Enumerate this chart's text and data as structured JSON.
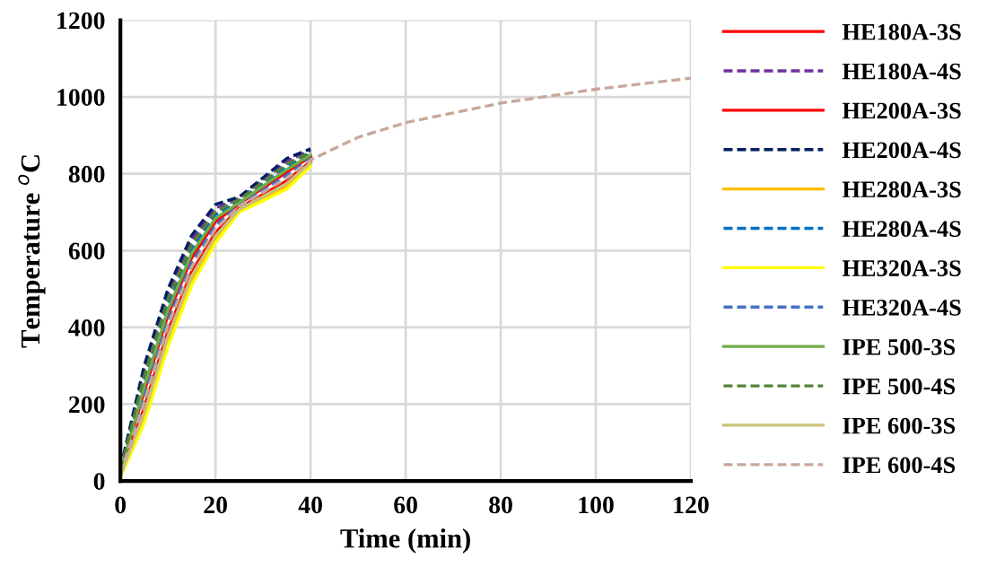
{
  "chart_data": {
    "type": "line",
    "xlabel": "Time (min)",
    "ylabel": "Temperature $^{o}$C",
    "x": [
      0,
      5,
      10,
      15,
      20,
      25,
      30,
      35,
      40,
      50,
      60,
      80,
      100,
      120
    ],
    "xlim": [
      0,
      120
    ],
    "xticks": [
      0,
      20,
      40,
      60,
      80,
      100,
      120
    ],
    "ylim": [
      0,
      1200
    ],
    "yticks": [
      0,
      200,
      400,
      600,
      800,
      1000,
      1200
    ],
    "grid": true,
    "legend": "right",
    "marker": "none",
    "series": [
      {
        "name": "HE180A-3S",
        "color": "#ff0000",
        "line_style": "solid",
        "values": [
          22,
          232,
          432,
          581,
          675,
          722,
          763,
          804,
          845,
          null,
          null,
          null,
          null,
          null
        ]
      },
      {
        "name": "HE180A-4S",
        "color": "#7030a0",
        "line_style": "dashed",
        "values": [
          30,
          286,
          486,
          628,
          711,
          736,
          785,
          833,
          861,
          null,
          null,
          null,
          null,
          null
        ]
      },
      {
        "name": "HE200A-3S",
        "color": "#ff0000",
        "line_style": "solid",
        "values": [
          16,
          191,
          391,
          545,
          647,
          711,
          746,
          782,
          832,
          null,
          null,
          null,
          null,
          null
        ]
      },
      {
        "name": "HE200A-4S",
        "color": "#002060",
        "line_style": "dashed",
        "values": [
          32,
          300,
          500,
          640,
          720,
          740,
          790,
          840,
          865,
          null,
          null,
          null,
          null,
          null
        ]
      },
      {
        "name": "HE280A-3S",
        "color": "#ffc000",
        "line_style": "solid",
        "values": [
          12,
          164,
          364,
          522,
          629,
          704,
          735,
          767,
          824,
          null,
          null,
          null,
          null,
          null
        ]
      },
      {
        "name": "HE280A-4S",
        "color": "#0070c0",
        "line_style": "dashed",
        "values": [
          26,
          259,
          459,
          605,
          693,
          729,
          774,
          818,
          853,
          null,
          null,
          null,
          null,
          null
        ]
      },
      {
        "name": "HE320A-3S",
        "color": "#ffff00",
        "line_style": "solid",
        "values": [
          10,
          150,
          350,
          510,
          620,
          700,
          730,
          760,
          820,
          null,
          null,
          null,
          null,
          null
        ]
      },
      {
        "name": "HE320A-4S",
        "color": "#4472c4",
        "line_style": "dashed",
        "values": [
          20,
          218,
          418,
          569,
          665,
          718,
          757,
          796,
          840,
          null,
          null,
          null,
          null,
          null
        ]
      },
      {
        "name": "IPE 500-3S",
        "color": "#70ad47",
        "line_style": "solid",
        "values": [
          24,
          245,
          445,
          593,
          684,
          725,
          768,
          811,
          849,
          null,
          null,
          null,
          null,
          null
        ]
      },
      {
        "name": "IPE 500-4S",
        "color": "#548235",
        "line_style": "dashed",
        "values": [
          28,
          273,
          473,
          616,
          702,
          733,
          779,
          825,
          857,
          null,
          null,
          null,
          null,
          null
        ]
      },
      {
        "name": "IPE 600-3S",
        "color": "#c9c27a",
        "line_style": "solid",
        "values": [
          14,
          177,
          377,
          534,
          638,
          707,
          741,
          775,
          828,
          null,
          null,
          null,
          null,
          null
        ]
      },
      {
        "name": "IPE 600-4S",
        "color": "#c8a89a",
        "line_style": "dashed",
        "values": [
          18,
          205,
          405,
          557,
          656,
          715,
          752,
          789,
          836,
          895,
          933,
          984,
          1020,
          1049
        ]
      }
    ]
  }
}
